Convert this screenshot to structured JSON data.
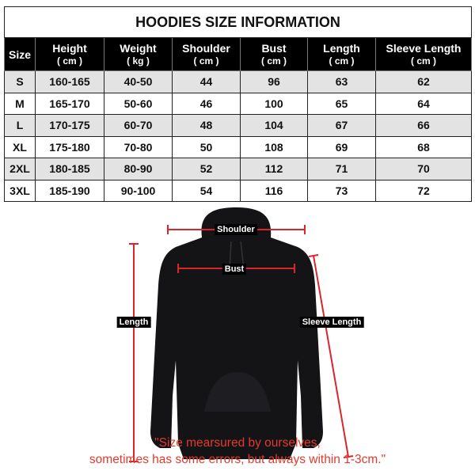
{
  "title": "HOODIES SIZE INFORMATION",
  "columns": [
    {
      "label": "Size",
      "unit": ""
    },
    {
      "label": "Height",
      "unit": "( cm )"
    },
    {
      "label": "Weight",
      "unit": "( kg )"
    },
    {
      "label": "Shoulder",
      "unit": "( cm )"
    },
    {
      "label": "Bust",
      "unit": "( cm )"
    },
    {
      "label": "Length",
      "unit": "( cm )"
    },
    {
      "label": "Sleeve Length",
      "unit": "( cm )"
    }
  ],
  "rows": [
    [
      "S",
      "160-165",
      "40-50",
      "44",
      "96",
      "63",
      "62"
    ],
    [
      "M",
      "165-170",
      "50-60",
      "46",
      "100",
      "65",
      "64"
    ],
    [
      "L",
      "170-175",
      "60-70",
      "48",
      "104",
      "67",
      "66"
    ],
    [
      "XL",
      "175-180",
      "70-80",
      "50",
      "108",
      "69",
      "68"
    ],
    [
      "2XL",
      "180-185",
      "80-90",
      "52",
      "112",
      "71",
      "70"
    ],
    [
      "3XL",
      "185-190",
      "90-100",
      "54",
      "116",
      "73",
      "72"
    ]
  ],
  "diagram": {
    "shoulder": "Shoulder",
    "bust": "Bust",
    "length": "Length",
    "sleeve_length": "Sleeve Length",
    "measure_color": "#d9252b",
    "garment_color": "#141417"
  },
  "note": {
    "line1": "\"Size mearsured by ourselves,",
    "line2": "sometimes has some errors, but always within 1-3cm.\""
  }
}
